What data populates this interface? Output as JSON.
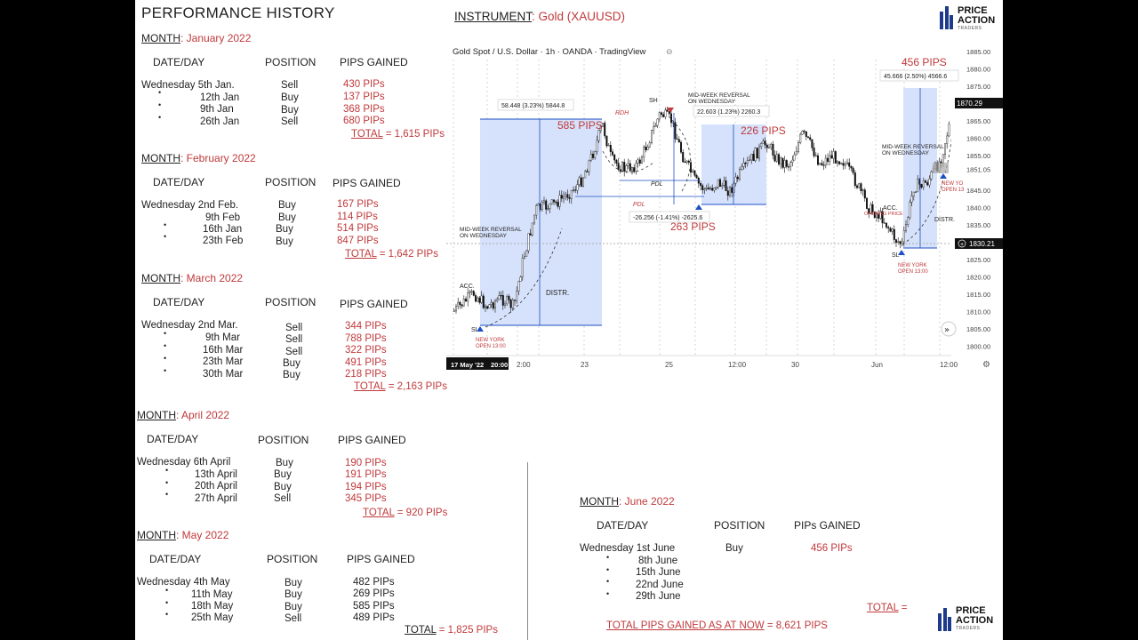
{
  "header": {
    "title": "PERFORMANCE HISTORY",
    "instrument_label": "INSTRUMENT",
    "instrument_value": ": Gold (XAUUSD)"
  },
  "logo": {
    "line1": "PRICE",
    "line2": "ACTION",
    "line3": "TRADERS"
  },
  "columns": {
    "date": "DATE/DAY",
    "position": "POSITION",
    "pips": "PIPS GAINED",
    "pips_alt": "PIPs GAINED"
  },
  "months": [
    {
      "label": "MONTH",
      "name": ": January 2022",
      "rows": [
        {
          "d": "Wednesday  5th Jan.",
          "p": "Sell",
          "g": "430 PIPs"
        },
        {
          "d": "12th Jan",
          "p": "Buy",
          "g": "137 PIPs"
        },
        {
          "d": "9th Jan",
          "p": "Buy",
          "g": "368 PIPs"
        },
        {
          "d": "26th Jan",
          "p": "Sell",
          "g": "680 PIPs"
        }
      ],
      "total_label": "TOTAL",
      "total_value": " = 1,615 PIPs"
    },
    {
      "label": "MONTH",
      "name": ": February 2022",
      "rows": [
        {
          "d": "Wednesday  2nd Feb.",
          "p": "Buy",
          "g": "167 PIPs"
        },
        {
          "d": "9th  Feb",
          "p": "Buy",
          "g": "114 PIPs"
        },
        {
          "d": "16th Jan",
          "p": "Buy",
          "g": "514 PIPs"
        },
        {
          "d": "23th Feb",
          "p": "Buy",
          "g": "847 PIPs"
        }
      ],
      "total_label": "TOTAL",
      "total_value": " = 1,642 PIPs"
    },
    {
      "label": "MONTH",
      "name": ": March 2022",
      "rows": [
        {
          "d": "Wednesday  2nd Mar.",
          "p": "Sell",
          "g": "344 PIPs"
        },
        {
          "d": "9th Mar",
          "p": "Sell",
          "g": "788 PIPs"
        },
        {
          "d": "16th Mar",
          "p": "Sell",
          "g": "322 PIPs"
        },
        {
          "d": "23th Mar",
          "p": "Buy",
          "g": "491 PIPs"
        },
        {
          "d": "30th Mar",
          "p": "Buy",
          "g": "218 PIPs"
        }
      ],
      "total_label": "TOTAL",
      "total_value": " = 2,163 PIPs"
    },
    {
      "label": "MONTH",
      "name": ": April 2022",
      "rows": [
        {
          "d": "Wednesday 6th April",
          "p": "Buy",
          "g": "190 PIPs"
        },
        {
          "d": "13th April",
          "p": "Buy",
          "g": "191 PIPs"
        },
        {
          "d": "20th April",
          "p": "Buy",
          "g": "194 PIPs"
        },
        {
          "d": "27th April",
          "p": "Sell",
          "g": "345 PIPs"
        }
      ],
      "total_label": "TOTAL",
      "total_value": " = 920 PIPs"
    },
    {
      "label": "MONTH",
      "name": ": May 2022",
      "rows": [
        {
          "d": "Wednesday 4th May",
          "p": "Buy",
          "g": "482 PIPs"
        },
        {
          "d": "11th May",
          "p": "Buy",
          "g": "269 PIPs"
        },
        {
          "d": "18th May",
          "p": "Buy",
          "g": "585 PIPs"
        },
        {
          "d": "25th May",
          "p": "Sell",
          "g": "489 PIPs"
        }
      ],
      "total_label": "TOTAL",
      "total_value": " = 1,825 PIPs"
    },
    {
      "label": "MONTH",
      "name": ": June 2022",
      "rows": [
        {
          "d": "Wednesday 1st June",
          "p": "Buy",
          "g": "456 PIPs"
        },
        {
          "d": "8th June",
          "p": "",
          "g": ""
        },
        {
          "d": "15th June",
          "p": "",
          "g": ""
        },
        {
          "d": "22nd June",
          "p": "",
          "g": ""
        },
        {
          "d": "29th June",
          "p": "",
          "g": ""
        }
      ],
      "total_label": "TOTAL",
      "total_value": " = ",
      "grand_label": "TOTAL PIPS GAINED AS AT NOW",
      "grand_value": " = 8,621 PIPS"
    }
  ],
  "chart": {
    "header": "Gold Spot / U.S. Dollar · 1h · OANDA · TradingView",
    "price_labels": [
      "1885.00",
      "1880.00",
      "1875.00",
      "1870.00",
      "1865.00",
      "1860.00",
      "1855.00",
      "1851.05",
      "1845.00",
      "1840.00",
      "1835.00",
      "1830.00",
      "1825.00",
      "1820.00",
      "1815.00",
      "1810.00",
      "1805.00",
      "1800.00"
    ],
    "current_price": "1870.29",
    "crosshair_price": "1830.21",
    "time_labels": [
      "17 May '22",
      "20:00",
      "2:00",
      "23",
      "25",
      "12:00",
      "30",
      "Jun",
      "12:00"
    ],
    "annotations": {
      "p585": "585 PIPS",
      "p226": "226 PIPS",
      "p263": "263 PIPS",
      "p456": "456 PIPS",
      "m1": "58.448 (3.23%) 5844.8",
      "m2": "22.603 (1.23%) 2260.3",
      "m3": "-26.256 (-1.41%) -2625.6",
      "m4": "45.666 (2.50%) 4566.6",
      "rdh": "RDH",
      "pdl": "PDL",
      "pdl2": "PDL",
      "sh": "SH",
      "acc1": "ACC.",
      "acc2": "ACC.",
      "sl1": "SL",
      "sl2": "SL",
      "distr1": "DISTR.",
      "distr2": "DISTR.",
      "mwr1a": "MID-WEEK REVERSAL",
      "mwr1b": "ON WEDNESDAY",
      "mwr2a": "MID-WEEK REVERSAL",
      "mwr2b": "ON WEDNESDAY",
      "mwr3a": "MID-WEEK REVERSAL",
      "mwr3b": "ON WEDNESDAY",
      "ny1a": "NEW YORK",
      "ny1b": "OPEN 13:00",
      "ny2a": "NEW YORK",
      "ny2b": "OPEN 13:00",
      "ny3a": "NEW YO",
      "ny3b": "OPEN 13",
      "opening": "OPENING PRICE"
    },
    "colors": {
      "box": "#d6e2fb",
      "accent": "#c0393b",
      "candle": "#111111",
      "buy_arrow": "#1e4fc4"
    }
  }
}
